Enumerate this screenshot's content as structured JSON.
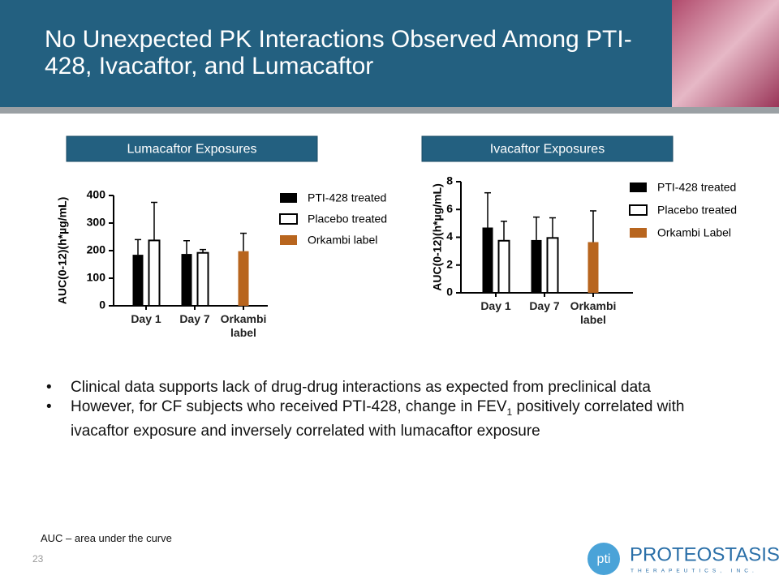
{
  "header": {
    "title": "No Unexpected PK Interactions Observed Among PTI-428, Ivacaftor, and Lumacaftor"
  },
  "chart_data": [
    {
      "type": "bar",
      "title": "Lumacaftor Exposures",
      "y_label": "AUC(0-12)(h*µg/mL)",
      "categories": [
        "Day 1",
        "Day 7",
        "Orkambi label"
      ],
      "series": [
        {
          "name": "PTI-428 treated",
          "color": "#000000",
          "values": [
            185,
            188,
            null
          ],
          "errors": [
            55,
            48,
            null
          ]
        },
        {
          "name": "Placebo treated",
          "color": "#ffffff",
          "values": [
            237,
            192,
            null
          ],
          "errors": [
            138,
            12,
            null
          ]
        },
        {
          "name": "Orkambi label",
          "color": "#b8651e",
          "values": [
            null,
            null,
            198
          ],
          "errors": [
            null,
            null,
            65
          ]
        }
      ],
      "ylim": [
        0,
        400
      ],
      "yticks": [
        0,
        100,
        200,
        300,
        400
      ]
    },
    {
      "type": "bar",
      "title": "Ivacaftor Exposures",
      "y_label": "AUC(0-12)(h*µg/mL)",
      "categories": [
        "Day 1",
        "Day 7",
        "Orkambi label"
      ],
      "series": [
        {
          "name": "PTI-428 treated",
          "color": "#000000",
          "values": [
            4.7,
            3.8,
            null
          ],
          "errors": [
            2.5,
            1.65,
            null
          ]
        },
        {
          "name": "Placebo treated",
          "color": "#ffffff",
          "values": [
            3.75,
            3.95,
            null
          ],
          "errors": [
            1.4,
            1.45,
            null
          ]
        },
        {
          "name": "Orkambi Label",
          "color": "#b8651e",
          "values": [
            null,
            null,
            3.65
          ],
          "errors": [
            null,
            null,
            2.25
          ]
        }
      ],
      "ylim": [
        0,
        8
      ],
      "yticks": [
        0,
        2,
        4,
        6,
        8
      ]
    }
  ],
  "bullets": [
    "Clinical data supports lack of drug-drug interactions as expected from preclinical data",
    {
      "before": "However, for CF subjects who received PTI-428, change in FEV",
      "subscript": "1",
      "after": " positively correlated with ivacaftor exposure and inversely correlated with lumacaftor exposure"
    }
  ],
  "footnote": "AUC – area under the curve",
  "page_number": "23",
  "logo": {
    "mark": "pti",
    "name": "PROTEOSTASIS",
    "tagline": "THERAPEUTICS, INC."
  }
}
